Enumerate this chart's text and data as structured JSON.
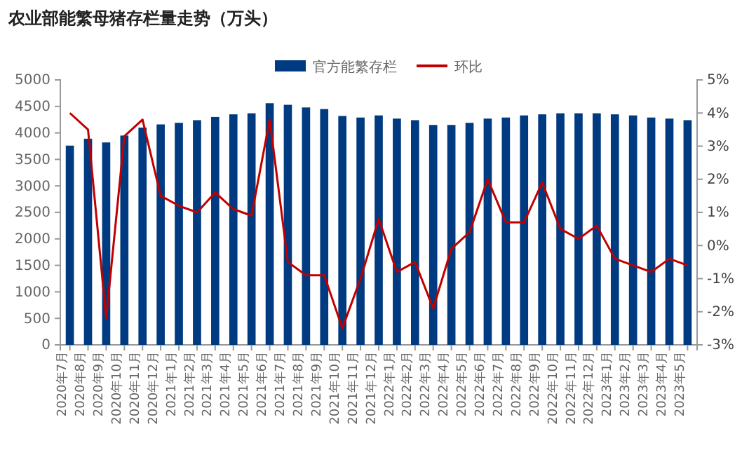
{
  "chart_data": {
    "type": "bar",
    "title": "农业部能繁母猪存栏量走势（万头）",
    "categories": [
      "2020年7月",
      "2020年8月",
      "2020年9月",
      "2020年10月",
      "2020年11月",
      "2020年12月",
      "2021年1月",
      "2021年2月",
      "2021年3月",
      "2021年4月",
      "2021年5月",
      "2021年6月",
      "2021年7月",
      "2021年8月",
      "2021年9月",
      "2021年10月",
      "2021年11月",
      "2021年12月",
      "2022年1月",
      "2022年2月",
      "2022年3月",
      "2022年4月",
      "2022年5月",
      "2022年6月",
      "2022年7月",
      "2022年8月",
      "2022年9月",
      "2022年10月",
      "2022年11月",
      "2022年12月",
      "2023年1月",
      "2023年2月",
      "2023年3月",
      "2023年4月",
      "2023年5月"
    ],
    "series": [
      {
        "name": "官方能繁存栏",
        "color": "#003a80",
        "values": [
          3760,
          3890,
          3820,
          3950,
          4100,
          4160,
          4190,
          4240,
          4300,
          4350,
          4370,
          4560,
          4530,
          4480,
          4450,
          4320,
          4290,
          4330,
          4270,
          4240,
          4150,
          4150,
          4190,
          4270,
          4290,
          4330,
          4350,
          4370,
          4370,
          4370,
          4350,
          4330,
          4290,
          4270,
          4240
        ]
      },
      {
        "name": "环比",
        "type": "line",
        "axis": "y2",
        "color": "#c00000",
        "values": [
          4.0,
          3.5,
          -2.2,
          3.3,
          3.8,
          1.5,
          1.2,
          1.0,
          1.6,
          1.1,
          0.9,
          3.8,
          -0.5,
          -0.9,
          -0.9,
          -2.5,
          -1.0,
          0.8,
          -0.8,
          -0.5,
          -1.9,
          -0.1,
          0.4,
          2.0,
          0.7,
          0.7,
          1.9,
          0.5,
          0.2,
          0.6,
          -0.4,
          -0.6,
          -0.8,
          -0.4,
          -0.6
        ]
      }
    ],
    "ylim": [
      0,
      5000
    ],
    "yticks": [
      0,
      500,
      1000,
      1500,
      2000,
      2500,
      3000,
      3500,
      4000,
      4500,
      5000
    ],
    "y2lim": [
      -3,
      5
    ],
    "y2ticks": [
      {
        "value": -3,
        "label": "-3%"
      },
      {
        "value": -2,
        "label": "-2%"
      },
      {
        "value": -1,
        "label": "-1%"
      },
      {
        "value": 0,
        "label": "0%"
      },
      {
        "value": 1,
        "label": "1%"
      },
      {
        "value": 2,
        "label": "2%"
      },
      {
        "value": 3,
        "label": "3%"
      },
      {
        "value": 4,
        "label": "4%"
      },
      {
        "value": 5,
        "label": "5%"
      }
    ],
    "legend": "top",
    "grid": false,
    "marker": "none"
  }
}
